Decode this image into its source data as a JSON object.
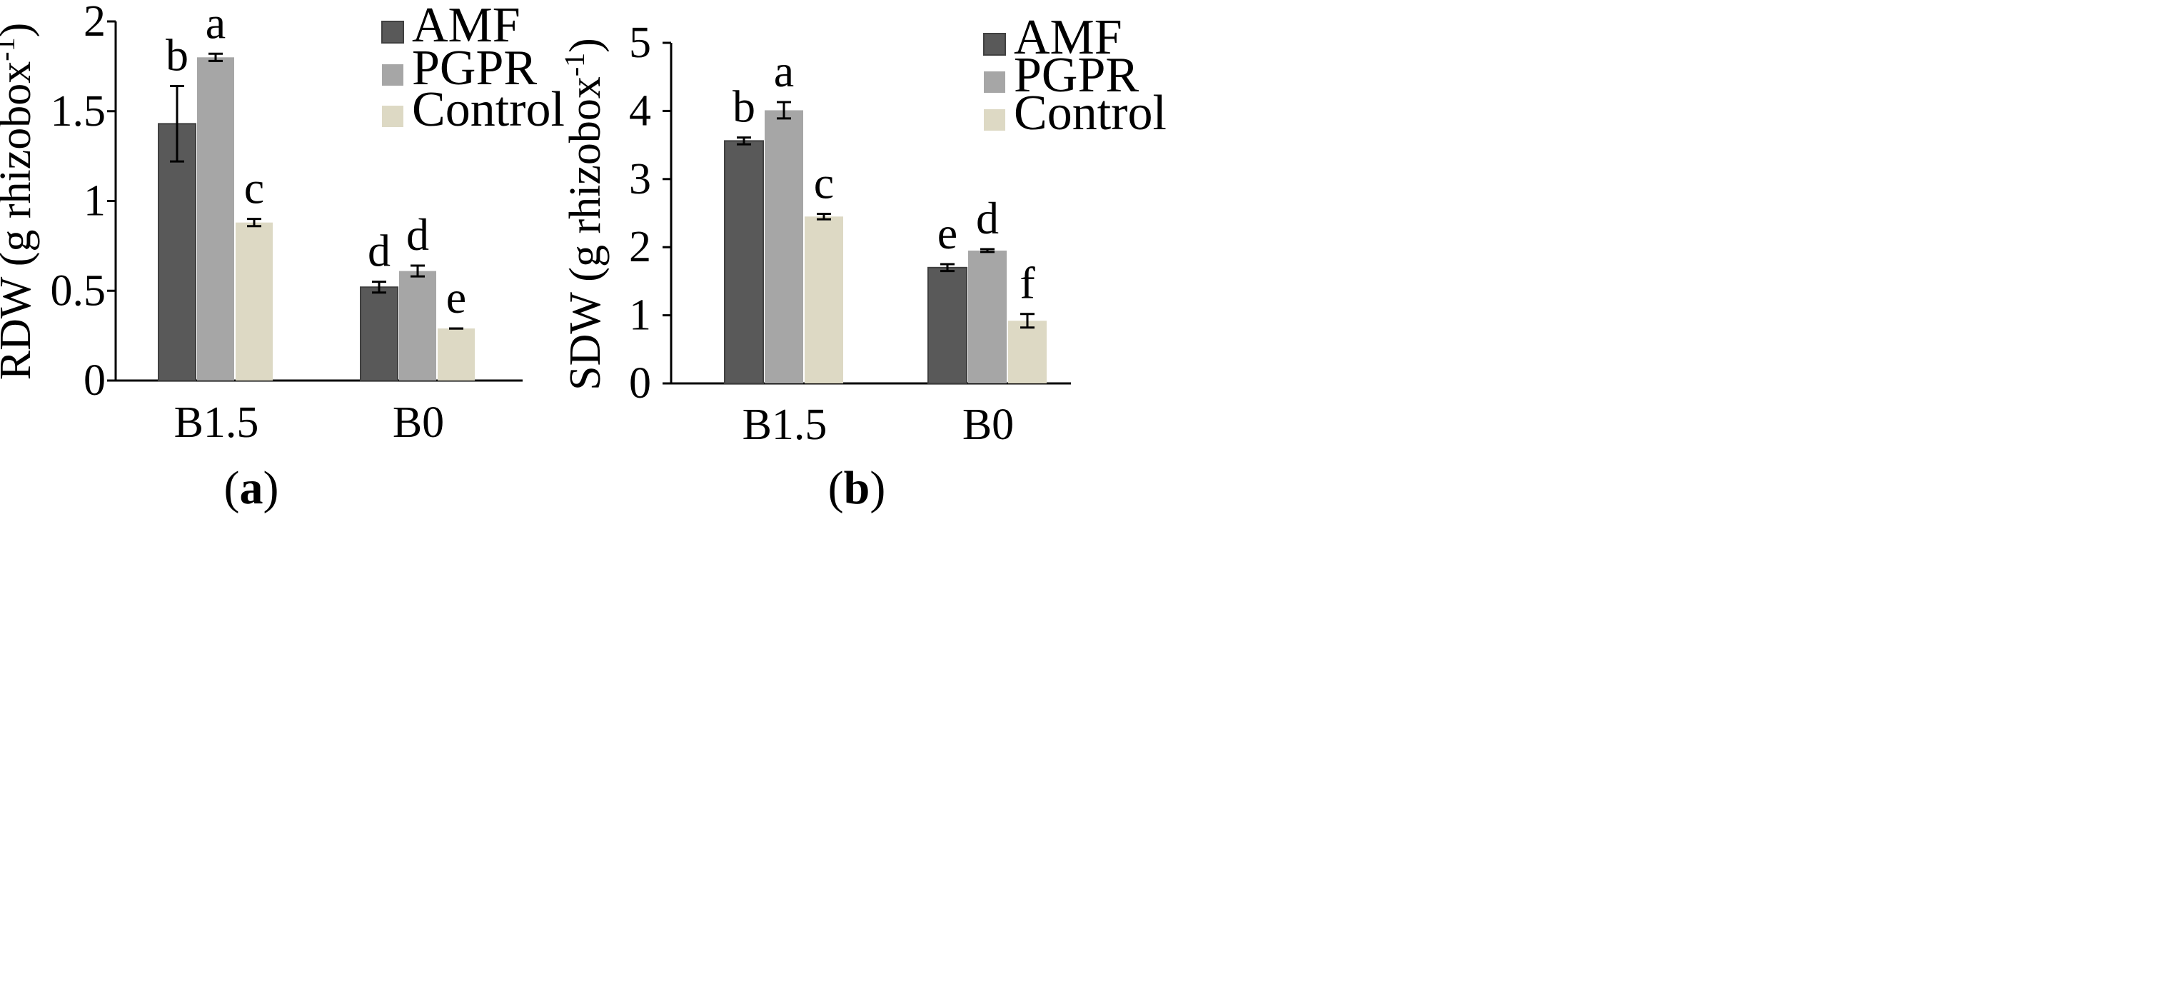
{
  "chart_data": [
    {
      "type": "bar",
      "panel_label": "a",
      "categories": [
        "B1.5",
        "B0"
      ],
      "series": [
        {
          "name": "AMF",
          "color": "#595959",
          "values": [
            1.43,
            0.52
          ],
          "errors": [
            0.21,
            0.03
          ],
          "letters": [
            "b",
            "d"
          ]
        },
        {
          "name": "PGPR",
          "color": "#a6a6a6",
          "values": [
            1.8,
            0.61
          ],
          "errors": [
            0.02,
            0.03
          ],
          "letters": [
            "a",
            "d"
          ]
        },
        {
          "name": "Control",
          "color": "#ddd9c4",
          "values": [
            0.88,
            0.29
          ],
          "errors": [
            0.02,
            0.0
          ],
          "letters": [
            "c",
            "e"
          ]
        }
      ],
      "ylabel": "RDW (g rhizobox",
      "ylabel_sup": "-1",
      "ylim": [
        0,
        2
      ],
      "yticks": [
        0,
        0.5,
        1,
        1.5,
        2
      ],
      "ytick_labels": [
        "0",
        "0.5",
        "1",
        "1.5",
        "2"
      ],
      "legend": "top-right",
      "grid": false
    },
    {
      "type": "bar",
      "panel_label": "b",
      "categories": [
        "B1.5",
        "B0"
      ],
      "series": [
        {
          "name": "AMF",
          "color": "#595959",
          "values": [
            3.56,
            1.7
          ],
          "errors": [
            0.05,
            0.05
          ],
          "letters": [
            "b",
            "e"
          ]
        },
        {
          "name": "PGPR",
          "color": "#a6a6a6",
          "values": [
            4.01,
            1.95
          ],
          "errors": [
            0.12,
            0.02
          ],
          "letters": [
            "a",
            "d"
          ]
        },
        {
          "name": "Control",
          "color": "#ddd9c4",
          "values": [
            2.45,
            0.92
          ],
          "errors": [
            0.04,
            0.1
          ],
          "letters": [
            "c",
            "f"
          ]
        }
      ],
      "ylabel": "SDW (g rhizobox",
      "ylabel_sup": "-1",
      "ylim": [
        0,
        5
      ],
      "yticks": [
        0,
        1,
        2,
        3,
        4,
        5
      ],
      "ytick_labels": [
        "0",
        "1",
        "2",
        "3",
        "4",
        "5"
      ],
      "legend": "top-right",
      "grid": false
    }
  ]
}
